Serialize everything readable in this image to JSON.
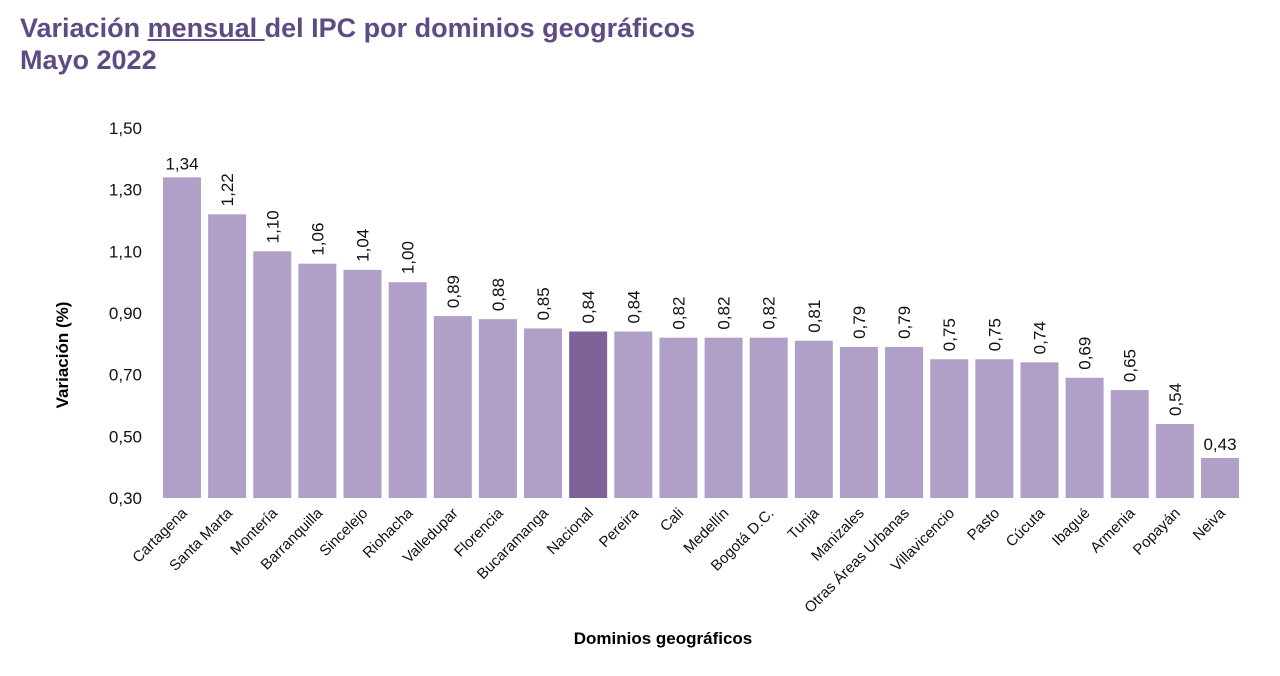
{
  "title": {
    "pre": "Variación ",
    "underlined": "mensual ",
    "post": "del IPC por dominios geográficos",
    "subtitle": "Mayo 2022"
  },
  "colors": {
    "bar": "#B0A0C8",
    "highlight": "#7E6399",
    "title": "#5F4B83"
  },
  "chart_data": {
    "type": "bar",
    "xlabel": "Dominios geográficos",
    "ylabel": "Variación (%)",
    "ylim": [
      0.3,
      1.5
    ],
    "yticks": [
      "0,30",
      "0,50",
      "0,70",
      "0,90",
      "1,10",
      "1,30",
      "1,50"
    ],
    "grid": false,
    "highlighted_category": "Nacional",
    "categories": [
      "Cartagena",
      "Santa Marta",
      "Montería",
      "Barranquilla",
      "Sincelejo",
      "Riohacha",
      "Valledupar",
      "Florencia",
      "Bucaramanga",
      "Nacional",
      "Pereira",
      "Cali",
      "Medellín",
      "Bogotá D.C.",
      "Tunja",
      "Manizales",
      "Otras Áreas Urbanas",
      "Villavicencio",
      "Pasto",
      "Cúcuta",
      "Ibagué",
      "Armenia",
      "Popayán",
      "Neiva"
    ],
    "values": [
      1.34,
      1.22,
      1.1,
      1.06,
      1.04,
      1.0,
      0.89,
      0.88,
      0.85,
      0.84,
      0.84,
      0.82,
      0.82,
      0.82,
      0.81,
      0.79,
      0.79,
      0.75,
      0.75,
      0.74,
      0.69,
      0.65,
      0.54,
      0.43
    ],
    "labels": [
      "1,34",
      "1,22",
      "1,10",
      "1,06",
      "1,04",
      "1,00",
      "0,89",
      "0,88",
      "0,85",
      "0,84",
      "0,84",
      "0,82",
      "0,82",
      "0,82",
      "0,81",
      "0,79",
      "0,79",
      "0,75",
      "0,75",
      "0,74",
      "0,69",
      "0,65",
      "0,54",
      "0,43"
    ]
  }
}
